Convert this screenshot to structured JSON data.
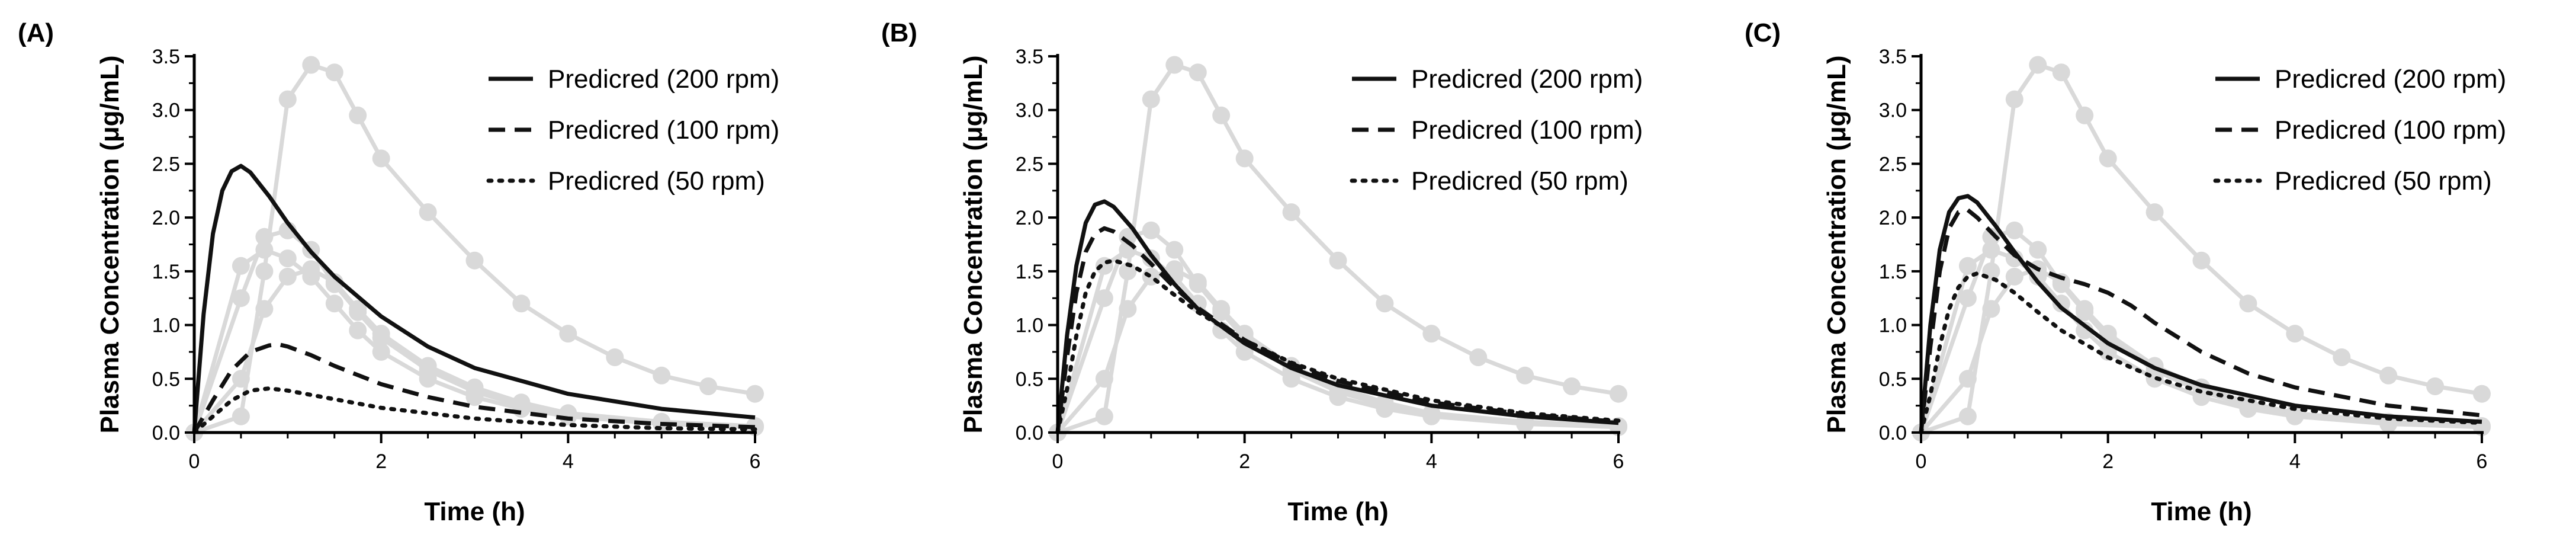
{
  "chart_data": [
    {
      "type": "line",
      "panel_label": "(A)",
      "xlabel": "Time (h)",
      "ylabel": "Plasma Concentration (μg/mL)",
      "xlim": [
        0,
        6
      ],
      "ylim": [
        0,
        3.5
      ],
      "x_ticks": [
        "0",
        "2",
        "4",
        "6"
      ],
      "y_ticks": [
        "0.0",
        "0.5",
        "1.0",
        "1.5",
        "2.0",
        "2.5",
        "3.0",
        "3.5"
      ],
      "legend_position": "top-right",
      "series": [
        {
          "name": "Predicred (200 rpm)",
          "style": "solid",
          "color": "#111111",
          "x": [
            0,
            0.1,
            0.2,
            0.3,
            0.4,
            0.5,
            0.6,
            0.8,
            1.0,
            1.25,
            1.5,
            2.0,
            2.5,
            3.0,
            4.0,
            5.0,
            6.0
          ],
          "y": [
            0,
            1.1,
            1.85,
            2.25,
            2.43,
            2.48,
            2.42,
            2.2,
            1.95,
            1.68,
            1.45,
            1.08,
            0.8,
            0.6,
            0.36,
            0.22,
            0.14
          ]
        },
        {
          "name": "Predicred (100 rpm)",
          "style": "dashed",
          "color": "#111111",
          "x": [
            0,
            0.2,
            0.4,
            0.6,
            0.8,
            0.9,
            1.0,
            1.25,
            1.5,
            2.0,
            2.5,
            3.0,
            4.0,
            5.0,
            6.0
          ],
          "y": [
            0,
            0.3,
            0.58,
            0.75,
            0.81,
            0.82,
            0.8,
            0.72,
            0.62,
            0.45,
            0.33,
            0.24,
            0.13,
            0.08,
            0.05
          ]
        },
        {
          "name": "Predicred (50 rpm)",
          "style": "dotted",
          "color": "#111111",
          "x": [
            0,
            0.2,
            0.4,
            0.6,
            0.8,
            1.0,
            1.5,
            2.0,
            3.0,
            4.0,
            5.0,
            6.0
          ],
          "y": [
            0,
            0.15,
            0.3,
            0.39,
            0.41,
            0.39,
            0.31,
            0.23,
            0.13,
            0.07,
            0.04,
            0.03
          ]
        }
      ],
      "observed": [
        {
          "x": [
            0,
            0.5,
            0.75,
            1.0,
            1.25,
            1.5,
            1.75,
            2.0,
            2.5,
            3.0,
            3.5,
            4.0,
            5.0,
            6.0
          ],
          "y": [
            0,
            1.55,
            1.7,
            1.62,
            1.45,
            1.2,
            0.95,
            0.75,
            0.5,
            0.33,
            0.22,
            0.15,
            0.08,
            0.05
          ]
        },
        {
          "x": [
            0,
            0.5,
            0.75,
            1.0,
            1.25,
            1.5,
            1.75,
            2.0,
            2.5,
            3.0,
            3.5,
            4.0,
            5.0,
            6.0
          ],
          "y": [
            0,
            1.25,
            1.82,
            1.88,
            1.7,
            1.38,
            1.12,
            0.88,
            0.58,
            0.38,
            0.25,
            0.17,
            0.09,
            0.06
          ]
        },
        {
          "x": [
            0,
            0.5,
            0.75,
            1.0,
            1.25,
            1.5,
            1.75,
            2.0,
            2.5,
            3.0,
            3.5,
            4.0,
            5.0,
            6.0
          ],
          "y": [
            0,
            0.5,
            1.15,
            1.45,
            1.52,
            1.4,
            1.15,
            0.92,
            0.62,
            0.42,
            0.28,
            0.18,
            0.1,
            0.06
          ]
        },
        {
          "x": [
            0,
            0.5,
            0.75,
            1.0,
            1.25,
            1.5,
            1.75,
            2.0,
            2.5,
            3.0,
            3.5,
            4.0,
            4.5,
            5.0,
            5.5,
            6.0
          ],
          "y": [
            0,
            0.15,
            1.5,
            3.1,
            3.42,
            3.35,
            2.95,
            2.55,
            2.05,
            1.6,
            1.2,
            0.92,
            0.7,
            0.53,
            0.43,
            0.36
          ]
        }
      ]
    },
    {
      "type": "line",
      "panel_label": "(B)",
      "xlabel": "Time (h)",
      "ylabel": "Plasma Concentration (μg/mL)",
      "xlim": [
        0,
        6
      ],
      "ylim": [
        0,
        3.5
      ],
      "x_ticks": [
        "0",
        "2",
        "4",
        "6"
      ],
      "y_ticks": [
        "0.0",
        "0.5",
        "1.0",
        "1.5",
        "2.0",
        "2.5",
        "3.0",
        "3.5"
      ],
      "legend_position": "top-right",
      "series": [
        {
          "name": "Predicred (200 rpm)",
          "style": "solid",
          "color": "#111111",
          "x": [
            0,
            0.1,
            0.2,
            0.3,
            0.4,
            0.5,
            0.6,
            0.8,
            1.0,
            1.25,
            1.5,
            2.0,
            2.5,
            3.0,
            4.0,
            5.0,
            6.0
          ],
          "y": [
            0,
            0.9,
            1.55,
            1.95,
            2.12,
            2.15,
            2.1,
            1.9,
            1.65,
            1.38,
            1.15,
            0.83,
            0.6,
            0.44,
            0.25,
            0.15,
            0.09
          ]
        },
        {
          "name": "Predicred (100 rpm)",
          "style": "dashed",
          "color": "#111111",
          "x": [
            0,
            0.1,
            0.2,
            0.3,
            0.4,
            0.5,
            0.6,
            0.8,
            1.0,
            1.25,
            1.5,
            2.0,
            2.5,
            3.0,
            4.0,
            5.0,
            6.0
          ],
          "y": [
            0,
            0.7,
            1.3,
            1.68,
            1.85,
            1.9,
            1.87,
            1.74,
            1.57,
            1.35,
            1.16,
            0.86,
            0.64,
            0.48,
            0.28,
            0.17,
            0.1
          ]
        },
        {
          "name": "Predicred (50 rpm)",
          "style": "dotted",
          "color": "#111111",
          "x": [
            0,
            0.1,
            0.2,
            0.3,
            0.4,
            0.5,
            0.6,
            0.8,
            1.0,
            1.25,
            1.5,
            2.0,
            2.5,
            3.0,
            4.0,
            5.0,
            6.0
          ],
          "y": [
            0,
            0.4,
            0.9,
            1.3,
            1.5,
            1.58,
            1.6,
            1.55,
            1.45,
            1.28,
            1.12,
            0.86,
            0.65,
            0.5,
            0.3,
            0.18,
            0.11
          ]
        }
      ],
      "observed": [
        {
          "x": [
            0,
            0.5,
            0.75,
            1.0,
            1.25,
            1.5,
            1.75,
            2.0,
            2.5,
            3.0,
            3.5,
            4.0,
            5.0,
            6.0
          ],
          "y": [
            0,
            1.55,
            1.7,
            1.62,
            1.45,
            1.2,
            0.95,
            0.75,
            0.5,
            0.33,
            0.22,
            0.15,
            0.08,
            0.05
          ]
        },
        {
          "x": [
            0,
            0.5,
            0.75,
            1.0,
            1.25,
            1.5,
            1.75,
            2.0,
            2.5,
            3.0,
            3.5,
            4.0,
            5.0,
            6.0
          ],
          "y": [
            0,
            1.25,
            1.82,
            1.88,
            1.7,
            1.38,
            1.12,
            0.88,
            0.58,
            0.38,
            0.25,
            0.17,
            0.09,
            0.06
          ]
        },
        {
          "x": [
            0,
            0.5,
            0.75,
            1.0,
            1.25,
            1.5,
            1.75,
            2.0,
            2.5,
            3.0,
            3.5,
            4.0,
            5.0,
            6.0
          ],
          "y": [
            0,
            0.5,
            1.15,
            1.45,
            1.52,
            1.4,
            1.15,
            0.92,
            0.62,
            0.42,
            0.28,
            0.18,
            0.1,
            0.06
          ]
        },
        {
          "x": [
            0,
            0.5,
            0.75,
            1.0,
            1.25,
            1.5,
            1.75,
            2.0,
            2.5,
            3.0,
            3.5,
            4.0,
            4.5,
            5.0,
            5.5,
            6.0
          ],
          "y": [
            0,
            0.15,
            1.5,
            3.1,
            3.42,
            3.35,
            2.95,
            2.55,
            2.05,
            1.6,
            1.2,
            0.92,
            0.7,
            0.53,
            0.43,
            0.36
          ]
        }
      ]
    },
    {
      "type": "line",
      "panel_label": "(C)",
      "xlabel": "Time (h)",
      "ylabel": "Plasma Concentration (μg/mL)",
      "xlim": [
        0,
        6
      ],
      "ylim": [
        0,
        3.5
      ],
      "x_ticks": [
        "0",
        "2",
        "4",
        "6"
      ],
      "y_ticks": [
        "0.0",
        "0.5",
        "1.0",
        "1.5",
        "2.0",
        "2.5",
        "3.0",
        "3.5"
      ],
      "legend_position": "top-right",
      "series": [
        {
          "name": "Predicred (200 rpm)",
          "style": "solid",
          "color": "#111111",
          "x": [
            0,
            0.1,
            0.2,
            0.3,
            0.4,
            0.5,
            0.6,
            0.8,
            1.0,
            1.25,
            1.5,
            2.0,
            2.5,
            3.0,
            4.0,
            5.0,
            6.0
          ],
          "y": [
            0,
            1.0,
            1.7,
            2.05,
            2.18,
            2.2,
            2.14,
            1.92,
            1.68,
            1.4,
            1.16,
            0.83,
            0.6,
            0.44,
            0.25,
            0.15,
            0.1
          ]
        },
        {
          "name": "Predicred (100 rpm)",
          "style": "dashed",
          "color": "#111111",
          "x": [
            0,
            0.1,
            0.2,
            0.3,
            0.4,
            0.5,
            0.6,
            0.8,
            1.0,
            1.25,
            1.5,
            1.75,
            2.0,
            2.25,
            2.5,
            3.0,
            3.5,
            4.0,
            5.0,
            6.0
          ],
          "y": [
            0,
            0.8,
            1.5,
            1.9,
            2.05,
            2.07,
            2.0,
            1.82,
            1.65,
            1.52,
            1.44,
            1.38,
            1.3,
            1.18,
            1.02,
            0.75,
            0.55,
            0.42,
            0.25,
            0.16
          ]
        },
        {
          "name": "Predicred (50 rpm)",
          "style": "dotted",
          "color": "#111111",
          "x": [
            0,
            0.1,
            0.2,
            0.3,
            0.4,
            0.5,
            0.6,
            0.8,
            1.0,
            1.25,
            1.5,
            2.0,
            2.5,
            3.0,
            4.0,
            5.0,
            6.0
          ],
          "y": [
            0,
            0.35,
            0.8,
            1.15,
            1.35,
            1.45,
            1.48,
            1.42,
            1.3,
            1.12,
            0.95,
            0.7,
            0.51,
            0.38,
            0.22,
            0.13,
            0.09
          ]
        }
      ],
      "observed": [
        {
          "x": [
            0,
            0.5,
            0.75,
            1.0,
            1.25,
            1.5,
            1.75,
            2.0,
            2.5,
            3.0,
            3.5,
            4.0,
            5.0,
            6.0
          ],
          "y": [
            0,
            1.55,
            1.7,
            1.62,
            1.45,
            1.2,
            0.95,
            0.75,
            0.5,
            0.33,
            0.22,
            0.15,
            0.08,
            0.05
          ]
        },
        {
          "x": [
            0,
            0.5,
            0.75,
            1.0,
            1.25,
            1.5,
            1.75,
            2.0,
            2.5,
            3.0,
            3.5,
            4.0,
            5.0,
            6.0
          ],
          "y": [
            0,
            1.25,
            1.82,
            1.88,
            1.7,
            1.38,
            1.12,
            0.88,
            0.58,
            0.38,
            0.25,
            0.17,
            0.09,
            0.06
          ]
        },
        {
          "x": [
            0,
            0.5,
            0.75,
            1.0,
            1.25,
            1.5,
            1.75,
            2.0,
            2.5,
            3.0,
            3.5,
            4.0,
            5.0,
            6.0
          ],
          "y": [
            0,
            0.5,
            1.15,
            1.45,
            1.52,
            1.4,
            1.15,
            0.92,
            0.62,
            0.42,
            0.28,
            0.18,
            0.1,
            0.06
          ]
        },
        {
          "x": [
            0,
            0.5,
            0.75,
            1.0,
            1.25,
            1.5,
            1.75,
            2.0,
            2.5,
            3.0,
            3.5,
            4.0,
            4.5,
            5.0,
            5.5,
            6.0
          ],
          "y": [
            0,
            0.15,
            1.5,
            3.1,
            3.42,
            3.35,
            2.95,
            2.55,
            2.05,
            1.6,
            1.2,
            0.92,
            0.7,
            0.53,
            0.43,
            0.36
          ]
        }
      ]
    }
  ],
  "colors": {
    "observed": "#d9d9d9",
    "predicted": "#111111",
    "axis": "#000000"
  }
}
